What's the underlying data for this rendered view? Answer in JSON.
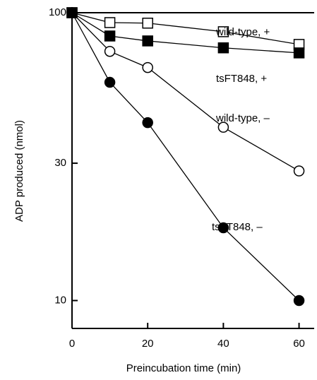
{
  "chart_data": {
    "type": "line",
    "x_label": "Preincubation time (min)",
    "y_label": "ADP produced (nmol)",
    "x": [
      0,
      10,
      20,
      40,
      60
    ],
    "xlim": [
      0,
      64
    ],
    "xticks": [
      0,
      20,
      40,
      60
    ],
    "ylim": [
      8,
      100
    ],
    "yticks": [
      10,
      30,
      100
    ],
    "log_y": true,
    "series": [
      {
        "name": "wild-type, +",
        "color": "#000000",
        "marker": "square",
        "filled": false,
        "values": [
          100,
          92.4,
          92,
          85.9,
          77.6
        ]
      },
      {
        "name": "tsFT848, +",
        "color": "#000000",
        "marker": "square",
        "filled": true,
        "values": [
          100,
          83,
          79.8,
          75.5,
          72.5
        ]
      },
      {
        "name": "wild-type, –",
        "color": "#000000",
        "marker": "circle",
        "filled": false,
        "values": [
          100,
          73.4,
          64.5,
          40,
          28.2
        ]
      },
      {
        "name": "tsFT848, –",
        "color": "#000000",
        "marker": "circle",
        "filled": true,
        "values": [
          100,
          57.3,
          41.5,
          17.9,
          10
        ]
      }
    ]
  }
}
